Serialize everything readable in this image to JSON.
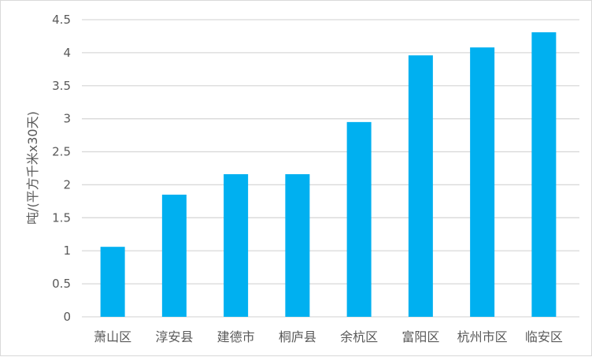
{
  "chart_data": {
    "type": "bar",
    "title": "",
    "xlabel": "",
    "ylabel": "吨/(平方千米x30天)",
    "categories": [
      "萧山区",
      "淳安县",
      "建德市",
      "桐庐县",
      "余杭区",
      "富阳区",
      "杭州市区",
      "临安区"
    ],
    "values": [
      1.06,
      1.85,
      2.16,
      2.16,
      2.95,
      3.96,
      4.08,
      4.31
    ],
    "ylim": [
      0,
      4.5
    ],
    "yticks": [
      "0",
      "0.5",
      "1",
      "1.5",
      "2",
      "2.5",
      "3",
      "3.5",
      "4",
      "4.5"
    ],
    "grid": true,
    "legend": "none",
    "colors": {
      "bar": "#00b0f0",
      "grid": "#d9d9d9",
      "text": "#595959"
    }
  }
}
